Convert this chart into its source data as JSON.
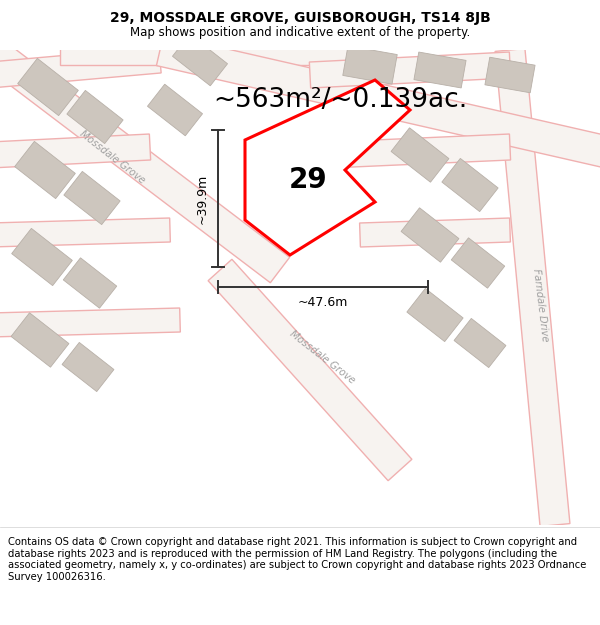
{
  "title": "29, MOSSDALE GROVE, GUISBOROUGH, TS14 8JB",
  "subtitle": "Map shows position and indicative extent of the property.",
  "footer": "Contains OS data © Crown copyright and database right 2021. This information is subject to Crown copyright and database rights 2023 and is reproduced with the permission of HM Land Registry. The polygons (including the associated geometry, namely x, y co-ordinates) are subject to Crown copyright and database rights 2023 Ordnance Survey 100026316.",
  "area_label": "~563m²/~0.139ac.",
  "plot_number": "29",
  "dim_width": "~47.6m",
  "dim_height": "~39.9m",
  "map_bg": "#ede8e3",
  "road_fill": "#f7f3f0",
  "road_edge": "#f0b0b0",
  "building_color": "#cdc6be",
  "building_edge": "#b8b0a8",
  "plot_fill": "#ffffff",
  "plot_border": "#ff0000",
  "dim_line_color": "#333333",
  "street_label_color": "#a0a0a0",
  "title_fontsize": 10,
  "subtitle_fontsize": 8.5,
  "footer_fontsize": 7.2,
  "area_fontsize": 19,
  "plot_num_fontsize": 20,
  "dim_fontsize": 9
}
